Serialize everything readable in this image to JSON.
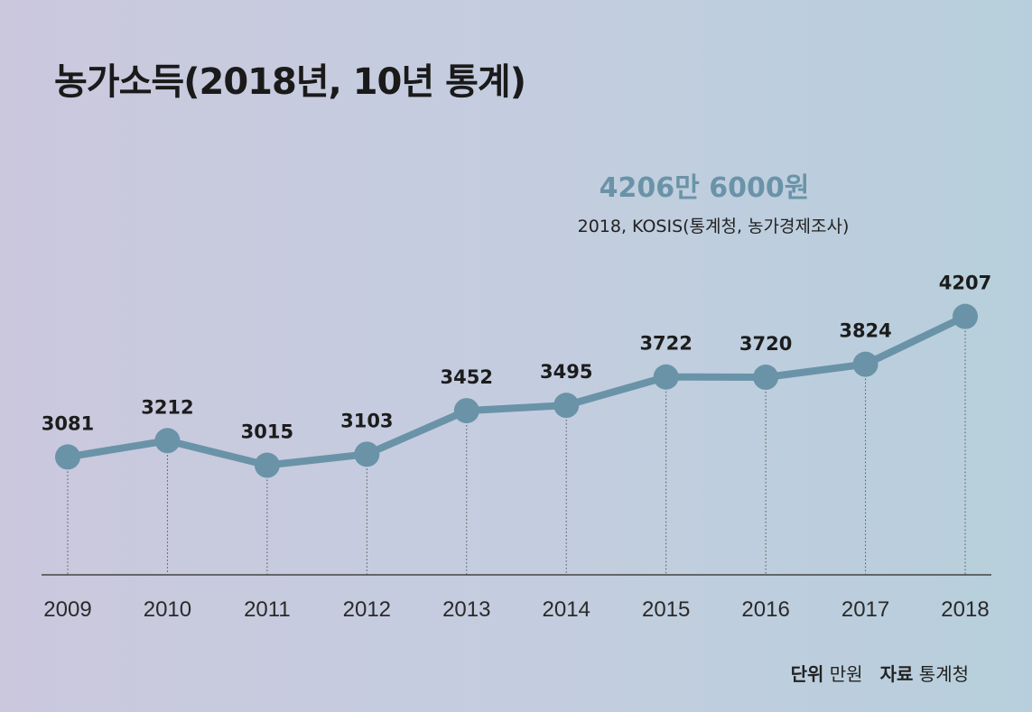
{
  "title": "농가소득(2018년, 10년 통계)",
  "highlight": {
    "amount": "4206만 6000원",
    "source": "2018, KOSIS(통계청, 농가경제조사)"
  },
  "footer": {
    "unit_label": "단위",
    "unit_value": "만원",
    "source_label": "자료",
    "source_value": "통계청"
  },
  "colors": {
    "line": "#6a93a8",
    "axis": "#444444",
    "text": "#1c1c1c"
  },
  "chart_data": {
    "type": "line",
    "title": "농가소득(2018년, 10년 통계)",
    "xlabel": "",
    "ylabel": "",
    "categories": [
      "2009",
      "2010",
      "2011",
      "2012",
      "2013",
      "2014",
      "2015",
      "2016",
      "2017",
      "2018"
    ],
    "series": [
      {
        "values": [
          3081,
          3212,
          3015,
          3103,
          3452,
          3495,
          3722,
          3720,
          3824,
          4207
        ]
      }
    ],
    "grid": false,
    "legend": "none",
    "data_labels": true
  }
}
